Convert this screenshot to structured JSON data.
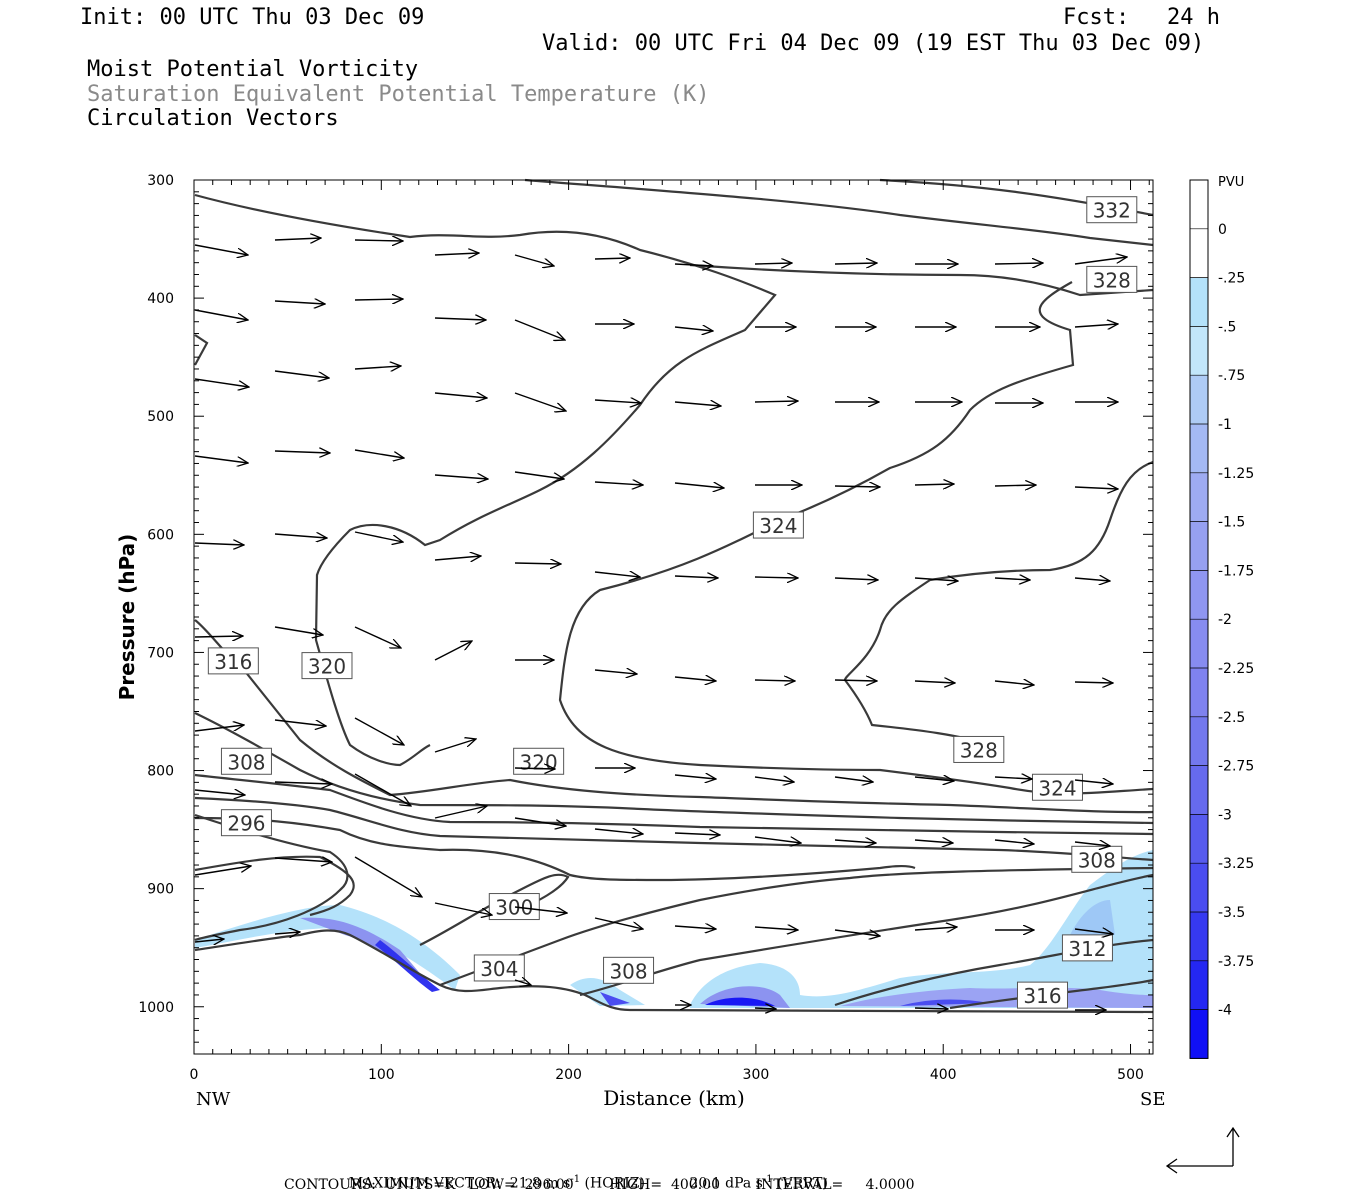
{
  "header": {
    "init": "Init: 00 UTC Thu 03 Dec 09",
    "fcst_label": "Fcst:",
    "fcst_value": "24 h",
    "valid": "Valid: 00 UTC Fri 04 Dec 09 (19 EST Thu 03 Dec 09)"
  },
  "fields": {
    "line1": "Moist Potential Vorticity",
    "line2": "Saturation Equivalent Potential Temperature (K)",
    "line3": "Circulation Vectors"
  },
  "colors": {
    "contour": "#3a3a3a",
    "shade_light": "#b4e2fa",
    "shade_mid": "#8c93f0",
    "shade_dark": "#2020f0"
  },
  "chart_data": {
    "type": "cross-section",
    "xlabel": "Distance (km)",
    "ylabel": "Pressure (hPa)",
    "xlim": [
      0,
      512
    ],
    "ylim": [
      1040,
      300
    ],
    "x_ticks": [
      0,
      100,
      200,
      300,
      400,
      500
    ],
    "y_ticks": [
      300,
      400,
      500,
      600,
      700,
      800,
      900,
      1000
    ],
    "x_end_labels": {
      "left": "NW",
      "right": "SE"
    },
    "colorbar": {
      "unit": "PVU",
      "levels": [
        "0",
        "-.25",
        "-.5",
        "-.75",
        "-1",
        "-1.25",
        "-1.5",
        "-1.75",
        "-2",
        "-2.25",
        "-2.5",
        "-2.75",
        "-3",
        "-3.25",
        "-3.5",
        "-3.75",
        "-4"
      ],
      "colors": [
        "#ffffff",
        "#ffffff",
        "#b4e2fa",
        "#c2e6fa",
        "#aecbf5",
        "#a4b9f4",
        "#9eabf2",
        "#96a0f1",
        "#8f96f1",
        "#878cf0",
        "#7f82ef",
        "#7378ee",
        "#666aee",
        "#575bee",
        "#4a4df0",
        "#3639f0",
        "#2427f2",
        "#1010f5"
      ]
    },
    "contour_labels": [
      {
        "value": "332",
        "x": 490,
        "p": 326
      },
      {
        "value": "328",
        "x": 490,
        "p": 385
      },
      {
        "value": "324",
        "x": 312,
        "p": 593
      },
      {
        "value": "320",
        "x": 71,
        "p": 712
      },
      {
        "value": "316",
        "x": 21,
        "p": 708
      },
      {
        "value": "328",
        "x": 419,
        "p": 783
      },
      {
        "value": "320",
        "x": 184,
        "p": 793
      },
      {
        "value": "324",
        "x": 461,
        "p": 815
      },
      {
        "value": "308",
        "x": 28,
        "p": 793
      },
      {
        "value": "296",
        "x": 28,
        "p": 845
      },
      {
        "value": "308",
        "x": 482,
        "p": 876
      },
      {
        "value": "300",
        "x": 171,
        "p": 916
      },
      {
        "value": "312",
        "x": 477,
        "p": 951
      },
      {
        "value": "304",
        "x": 163,
        "p": 968
      },
      {
        "value": "308",
        "x": 232,
        "p": 970
      },
      {
        "value": "316",
        "x": 453,
        "p": 991
      }
    ],
    "contours": {
      "units": "K",
      "low": 296.0,
      "high": 400.0,
      "interval": 4.0
    }
  },
  "footer": {
    "max_vector_label": "MAXIMUM VECTOR:",
    "horiz_value": "21.8 m s",
    "horiz_unit_tail": "(HORIZ)",
    "vert_value": "20.1 dPa s",
    "vert_unit_tail": "(VERT)",
    "exponent": "-1",
    "contours_line": "CONTOURS:  UNITS=K   LOW=  296.00        HIGH=  400.00        INTERVAL=     4.0000"
  }
}
